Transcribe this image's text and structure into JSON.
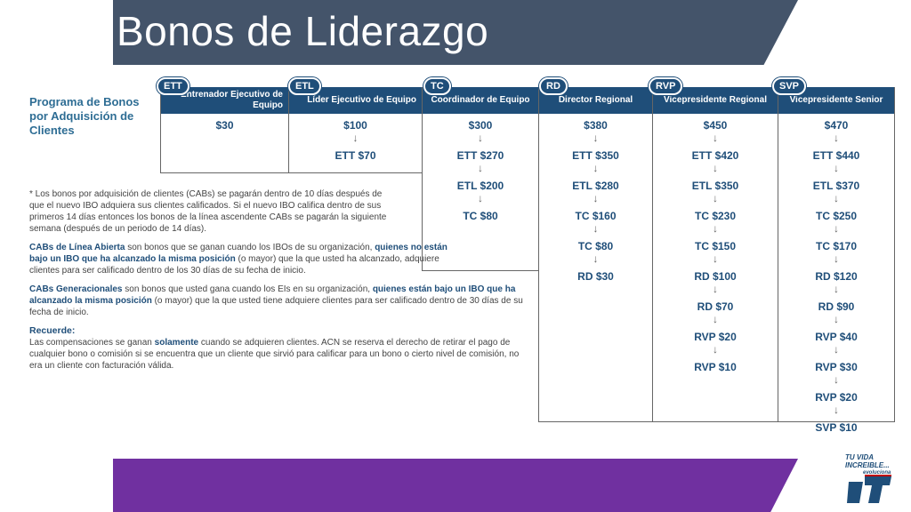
{
  "title": "Bonos de Liderazgo",
  "heading": "Programa de Bonos por Adquisición de Clientes",
  "columns": [
    {
      "badge": "ETT",
      "header": "Entrenador Ejecutivo de Equipo",
      "values": [
        "$30"
      ]
    },
    {
      "badge": "ETL",
      "header": "Líder Ejecutivo de Equipo",
      "values": [
        "$100",
        "ETT $70"
      ]
    },
    {
      "badge": "TC",
      "header": "Coordinador de Equipo",
      "values": [
        "$300",
        "ETT $270",
        "ETL $200",
        "TC $80"
      ]
    },
    {
      "badge": "RD",
      "header": "Director Regional",
      "values": [
        "$380",
        "ETT $350",
        "ETL $280",
        "TC $160",
        "TC $80",
        "RD $30"
      ]
    },
    {
      "badge": "RVP",
      "header": "Vicepresidente Regional",
      "values": [
        "$450",
        "ETT $420",
        "ETL $350",
        "TC $230",
        "TC $150",
        "RD $100",
        "RD $70",
        "RVP $20",
        "RVP $10"
      ]
    },
    {
      "badge": "SVP",
      "header": "Vicepresidente Senior",
      "values": [
        "$470",
        "ETT $440",
        "ETL $370",
        "TC $250",
        "TC $170",
        "RD $120",
        "RD $90",
        "RVP $40",
        "RVP $30",
        "RVP $20",
        "SVP $10"
      ]
    }
  ],
  "notes": {
    "n1": "* Los bonos por adquisición de clientes (CABs) se pagarán dentro de 10 días después de que el nuevo IBO adquiera sus clientes calificados. Si el nuevo IBO califica dentro de sus primeros 14 días entonces los bonos de la línea ascendente CABs se pagarán la siguiente semana (después de un periodo de 14 días).",
    "n2_bold_a": "CABs de Línea Abierta",
    "n2_text_a": " son bonos que se ganan cuando los IBOs de su organización, ",
    "n2_bold_b": "quienes no están bajo un IBO que ha alcanzado la misma posición",
    "n2_text_b": " (o mayor) que la que usted ha alcanzado, adquiere clientes para ser calificado dentro de los 30 días de su fecha de inicio.",
    "n3_bold_a": "CABs Generacionales",
    "n3_text_a": " son bonos que usted gana cuando los EIs en su organización, ",
    "n3_bold_b": "quienes están bajo un IBO que ha alcanzado la misma posición",
    "n3_text_b": " (o mayor) que la que usted tiene adquiere clientes para ser calificado dentro de 30 días de su fecha de inicio.",
    "recuerde": "Recuerde:",
    "n4_text_a": "Las compensaciones se ganan ",
    "n4_bold": "solamente",
    "n4_text_b": " cuando se adquieren clientes. ACN se reserva el derecho de retirar el pago de cualquier bono o comisión si se encuentra que un cliente que sirvió para calificar para un bono o cierto nivel de comisión, no era un cliente con facturación válida."
  },
  "logo": {
    "line1": "TU VIDA",
    "line2": "INCREIBLE...",
    "line3": "evoluciona"
  }
}
